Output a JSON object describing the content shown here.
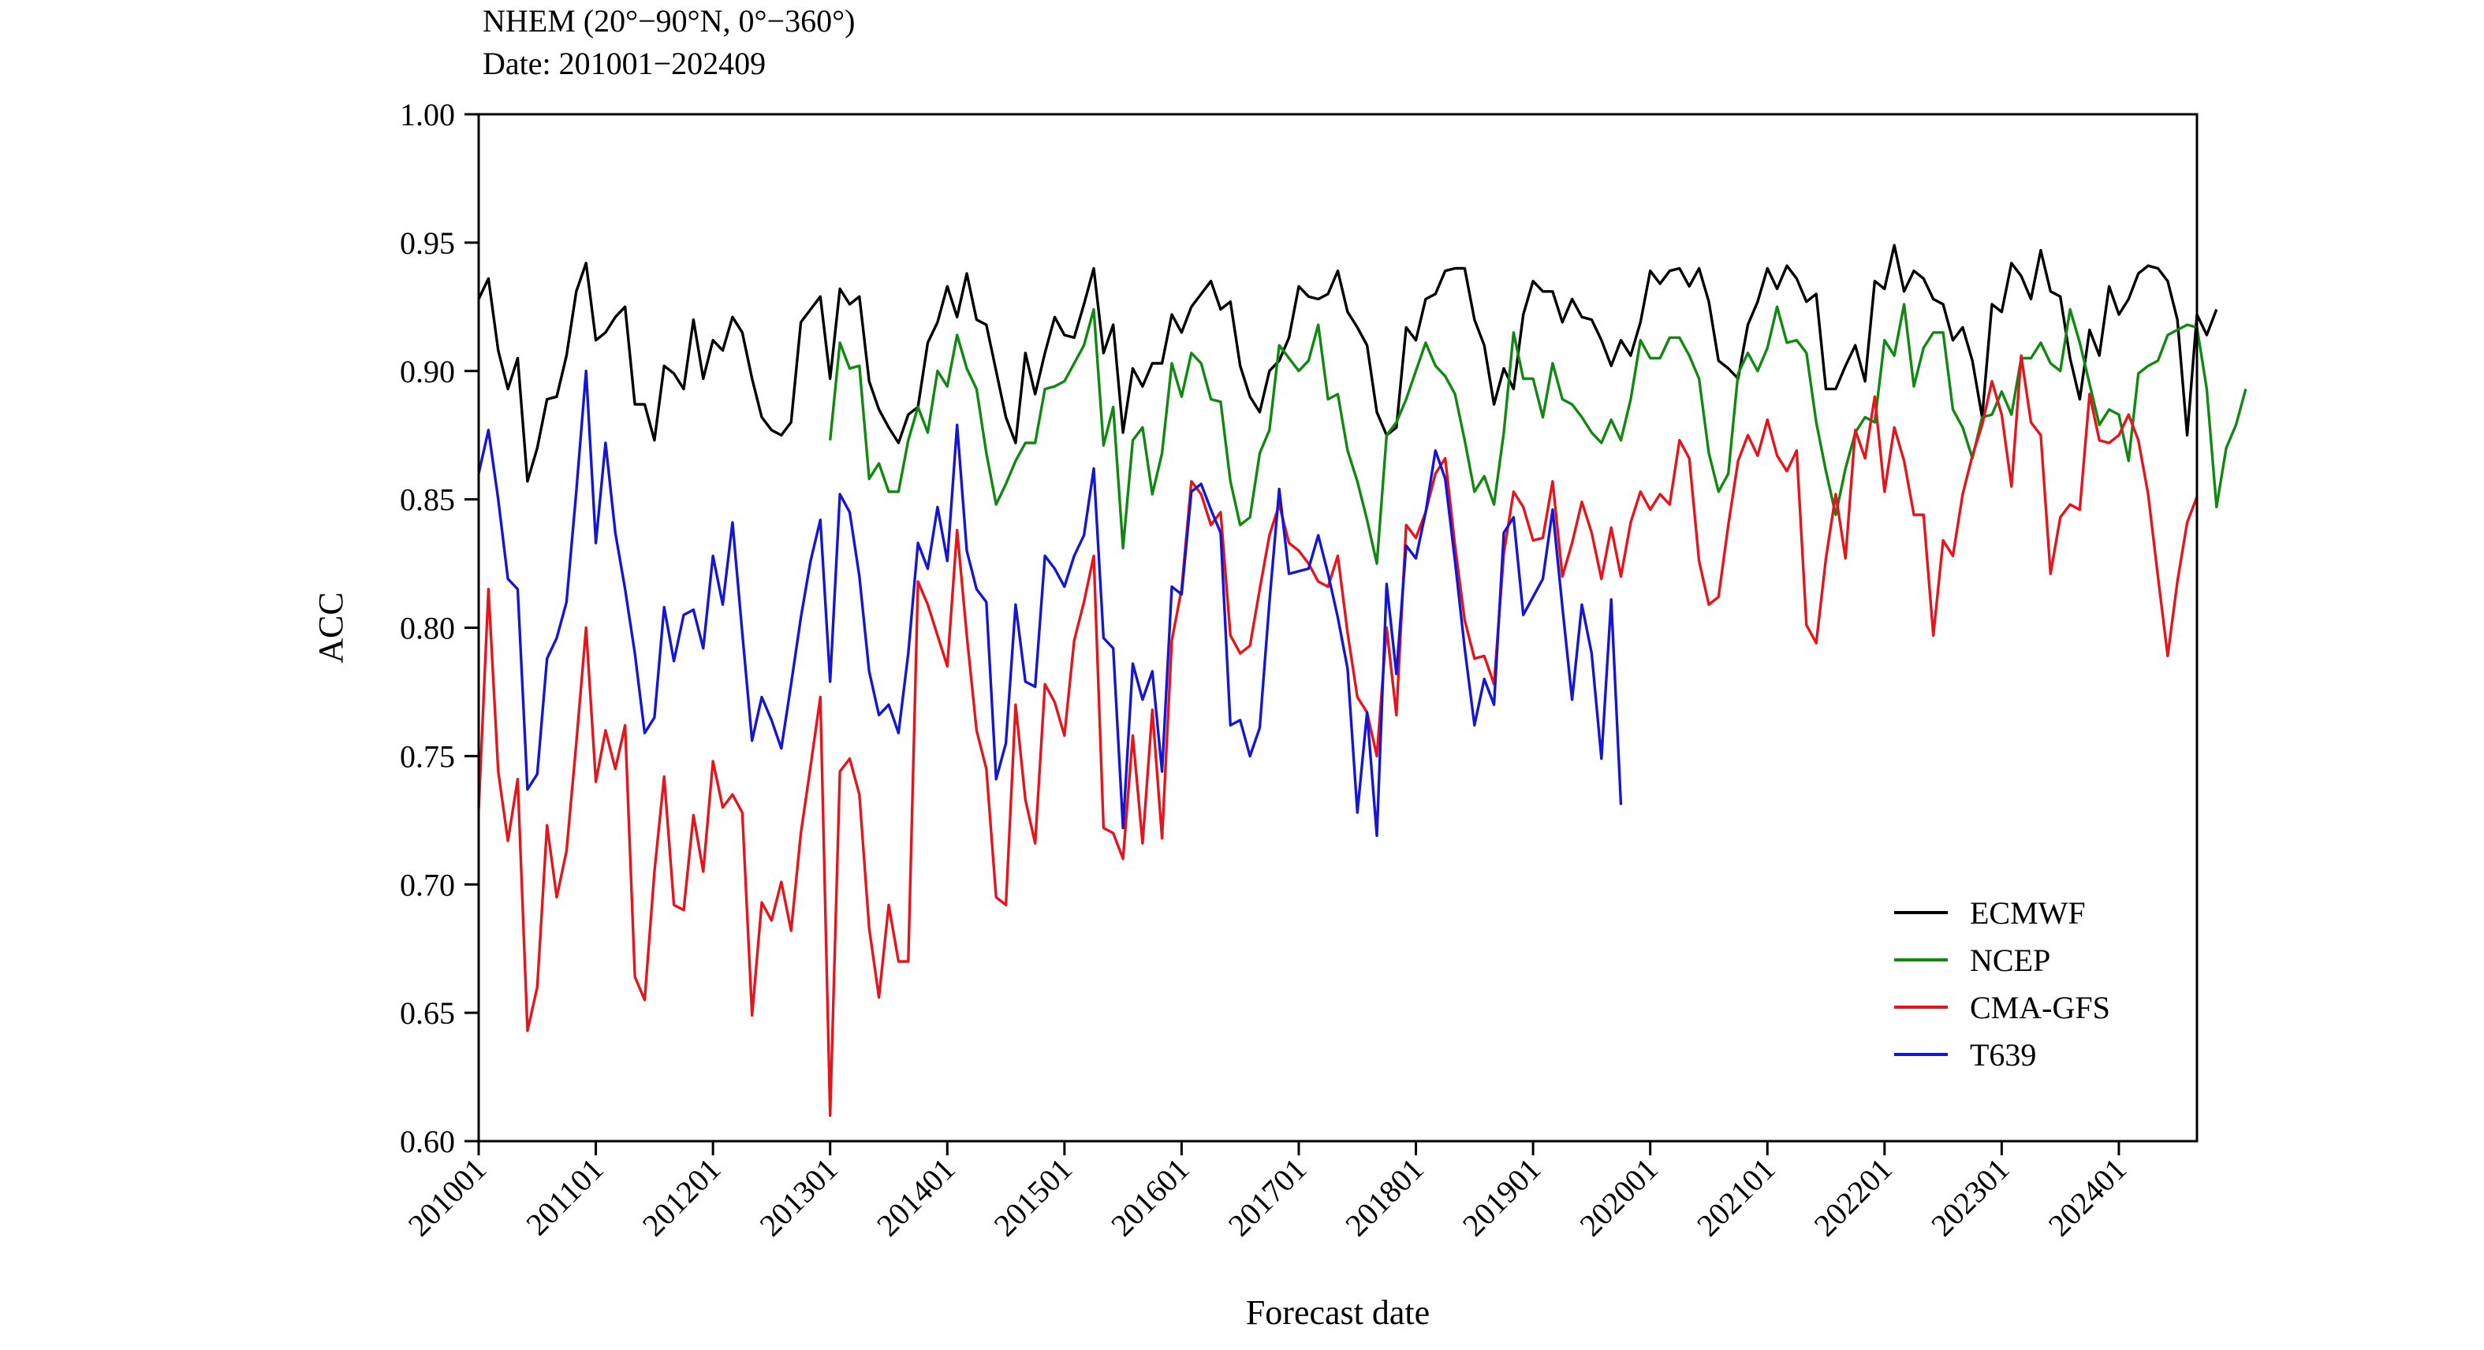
{
  "header": {
    "region": "NHEM (20°−90°N, 0°−360°)",
    "date_range": "Date: 201001−202409"
  },
  "chart_data": {
    "type": "line",
    "xlabel": "Forecast date",
    "ylabel": "ACC",
    "ylim": [
      0.6,
      1.0
    ],
    "yticks": [
      "0.60",
      "0.65",
      "0.70",
      "0.75",
      "0.80",
      "0.85",
      "0.90",
      "0.95",
      "1.00"
    ],
    "xticks": [
      "201001",
      "201101",
      "201201",
      "201301",
      "201401",
      "201501",
      "201601",
      "201701",
      "201801",
      "201901",
      "202001",
      "202101",
      "202201",
      "202301",
      "202401"
    ],
    "x_start": "2010-01",
    "x_end": "2024-09",
    "grid": false,
    "legend_position": "bottom-right",
    "series": [
      {
        "name": "ECMWF",
        "color": "#000000",
        "start": "2010-01",
        "values": [
          0.928,
          0.936,
          0.908,
          0.893,
          0.905,
          0.857,
          0.87,
          0.889,
          0.89,
          0.906,
          0.931,
          0.942,
          0.912,
          0.915,
          0.921,
          0.925,
          0.887,
          0.887,
          0.873,
          0.902,
          0.899,
          0.893,
          0.92,
          0.897,
          0.912,
          0.908,
          0.921,
          0.915,
          0.897,
          0.882,
          0.877,
          0.875,
          0.88,
          0.919,
          0.924,
          0.929,
          0.897,
          0.932,
          0.926,
          0.929,
          0.896,
          0.885,
          0.878,
          0.872,
          0.883,
          0.886,
          0.911,
          0.919,
          0.933,
          0.921,
          0.938,
          0.92,
          0.918,
          0.9,
          0.882,
          0.872,
          0.907,
          0.891,
          0.907,
          0.921,
          0.914,
          0.913,
          0.926,
          0.94,
          0.907,
          0.918,
          0.876,
          0.901,
          0.894,
          0.903,
          0.903,
          0.922,
          0.915,
          0.925,
          0.93,
          0.935,
          0.924,
          0.927,
          0.902,
          0.89,
          0.884,
          0.9,
          0.904,
          0.913,
          0.933,
          0.929,
          0.928,
          0.93,
          0.939,
          0.923,
          0.917,
          0.91,
          0.884,
          0.875,
          0.878,
          0.917,
          0.912,
          0.928,
          0.93,
          0.939,
          0.94,
          0.94,
          0.92,
          0.91,
          0.887,
          0.901,
          0.893,
          0.922,
          0.935,
          0.931,
          0.931,
          0.919,
          0.928,
          0.921,
          0.92,
          0.912,
          0.902,
          0.912,
          0.906,
          0.919,
          0.939,
          0.934,
          0.939,
          0.94,
          0.933,
          0.94,
          0.927,
          0.904,
          0.901,
          0.897,
          0.918,
          0.927,
          0.94,
          0.932,
          0.941,
          0.936,
          0.927,
          0.93,
          0.893,
          0.893,
          0.902,
          0.91,
          0.896,
          0.935,
          0.932,
          0.949,
          0.931,
          0.939,
          0.936,
          0.928,
          0.926,
          0.912,
          0.917,
          0.904,
          0.882,
          0.926,
          0.923,
          0.942,
          0.937,
          0.928,
          0.947,
          0.931,
          0.929,
          0.905,
          0.889,
          0.916,
          0.906,
          0.933,
          0.922,
          0.928,
          0.938,
          0.941,
          0.94,
          0.935,
          0.92,
          0.875,
          0.922,
          0.914,
          0.924
        ]
      },
      {
        "name": "NCEP",
        "color": "#118811",
        "start": "2013-01",
        "values": [
          0.873,
          0.911,
          0.901,
          0.902,
          0.858,
          0.864,
          0.853,
          0.853,
          0.873,
          0.886,
          0.876,
          0.9,
          0.894,
          0.914,
          0.901,
          0.893,
          0.868,
          0.848,
          0.856,
          0.865,
          0.872,
          0.872,
          0.893,
          0.894,
          0.896,
          0.903,
          0.91,
          0.924,
          0.871,
          0.886,
          0.831,
          0.873,
          0.878,
          0.852,
          0.868,
          0.903,
          0.89,
          0.907,
          0.903,
          0.889,
          0.888,
          0.857,
          0.84,
          0.843,
          0.868,
          0.877,
          0.91,
          0.905,
          0.9,
          0.904,
          0.918,
          0.889,
          0.891,
          0.869,
          0.857,
          0.842,
          0.825,
          0.875,
          0.88,
          0.889,
          0.9,
          0.911,
          0.902,
          0.898,
          0.891,
          0.873,
          0.853,
          0.859,
          0.848,
          0.876,
          0.915,
          0.897,
          0.897,
          0.882,
          0.903,
          0.889,
          0.887,
          0.882,
          0.876,
          0.872,
          0.881,
          0.873,
          0.889,
          0.912,
          0.905,
          0.905,
          0.913,
          0.913,
          0.906,
          0.897,
          0.868,
          0.853,
          0.86,
          0.899,
          0.907,
          0.9,
          0.909,
          0.925,
          0.911,
          0.912,
          0.907,
          0.88,
          0.861,
          0.844,
          0.862,
          0.876,
          0.882,
          0.88,
          0.912,
          0.906,
          0.926,
          0.894,
          0.909,
          0.915,
          0.915,
          0.885,
          0.878,
          0.866,
          0.882,
          0.883,
          0.892,
          0.883,
          0.905,
          0.905,
          0.911,
          0.903,
          0.9,
          0.924,
          0.911,
          0.895,
          0.879,
          0.885,
          0.883,
          0.865,
          0.899,
          0.902,
          0.904,
          0.914,
          0.916,
          0.918,
          0.917,
          0.893,
          0.847,
          0.87,
          0.879,
          0.893
        ]
      },
      {
        "name": "CMA-GFS",
        "color": "#e8141c",
        "start": "2010-01",
        "values": [
          0.729,
          0.815,
          0.744,
          0.717,
          0.741,
          0.643,
          0.66,
          0.723,
          0.695,
          0.713,
          0.755,
          0.8,
          0.74,
          0.76,
          0.745,
          0.762,
          0.664,
          0.655,
          0.705,
          0.742,
          0.692,
          0.69,
          0.727,
          0.705,
          0.748,
          0.73,
          0.735,
          0.728,
          0.649,
          0.693,
          0.686,
          0.701,
          0.682,
          0.72,
          0.746,
          0.773,
          0.61,
          0.744,
          0.749,
          0.735,
          0.683,
          0.656,
          0.692,
          0.67,
          0.67,
          0.818,
          0.809,
          0.797,
          0.785,
          0.838,
          0.797,
          0.76,
          0.745,
          0.695,
          0.692,
          0.77,
          0.733,
          0.716,
          0.778,
          0.771,
          0.758,
          0.795,
          0.81,
          0.828,
          0.722,
          0.72,
          0.71,
          0.758,
          0.716,
          0.768,
          0.718,
          0.795,
          0.815,
          0.857,
          0.852,
          0.84,
          0.845,
          0.797,
          0.79,
          0.793,
          0.815,
          0.836,
          0.848,
          0.833,
          0.83,
          0.825,
          0.818,
          0.816,
          0.828,
          0.798,
          0.773,
          0.767,
          0.75,
          0.8,
          0.766,
          0.84,
          0.835,
          0.845,
          0.86,
          0.866,
          0.832,
          0.803,
          0.788,
          0.789,
          0.778,
          0.829,
          0.853,
          0.847,
          0.834,
          0.835,
          0.857,
          0.82,
          0.833,
          0.849,
          0.837,
          0.819,
          0.839,
          0.82,
          0.841,
          0.853,
          0.846,
          0.852,
          0.848,
          0.873,
          0.866,
          0.826,
          0.809,
          0.812,
          0.84,
          0.865,
          0.875,
          0.867,
          0.881,
          0.867,
          0.861,
          0.869,
          0.801,
          0.794,
          0.827,
          0.852,
          0.827,
          0.877,
          0.866,
          0.89,
          0.853,
          0.878,
          0.865,
          0.844,
          0.844,
          0.797,
          0.834,
          0.828,
          0.852,
          0.867,
          0.879,
          0.896,
          0.883,
          0.855,
          0.906,
          0.88,
          0.875,
          0.821,
          0.843,
          0.848,
          0.846,
          0.891,
          0.873,
          0.872,
          0.875,
          0.883,
          0.873,
          0.852,
          0.82,
          0.789,
          0.818,
          0.841,
          0.851
        ]
      },
      {
        "name": "T639",
        "color": "#1515d6",
        "start": "2010-01",
        "values": [
          0.86,
          0.877,
          0.85,
          0.819,
          0.815,
          0.737,
          0.743,
          0.788,
          0.796,
          0.81,
          0.853,
          0.9,
          0.833,
          0.872,
          0.837,
          0.815,
          0.79,
          0.759,
          0.765,
          0.808,
          0.787,
          0.805,
          0.807,
          0.792,
          0.828,
          0.809,
          0.841,
          0.798,
          0.756,
          0.773,
          0.764,
          0.753,
          0.778,
          0.804,
          0.826,
          0.842,
          0.779,
          0.852,
          0.845,
          0.82,
          0.783,
          0.766,
          0.77,
          0.759,
          0.79,
          0.833,
          0.823,
          0.847,
          0.826,
          0.879,
          0.83,
          0.815,
          0.81,
          0.741,
          0.755,
          0.809,
          0.779,
          0.777,
          0.828,
          0.823,
          0.816,
          0.828,
          0.836,
          0.862,
          0.796,
          0.792,
          0.722,
          0.786,
          0.772,
          0.783,
          0.744,
          0.816,
          0.813,
          0.853,
          0.856,
          0.846,
          0.837,
          0.762,
          0.764,
          0.75,
          0.761,
          0.81,
          0.854,
          0.821,
          0.822,
          0.823,
          0.836,
          0.821,
          0.804,
          0.784,
          0.728,
          0.767,
          0.719,
          0.817,
          0.782,
          0.832,
          0.827,
          0.845,
          0.869,
          0.858,
          0.826,
          0.792,
          0.762,
          0.78,
          0.77,
          0.837,
          0.843,
          0.805,
          0.812,
          0.819,
          0.846,
          0.808,
          0.772,
          0.809,
          0.79,
          0.749,
          0.811,
          0.731
        ]
      }
    ]
  }
}
